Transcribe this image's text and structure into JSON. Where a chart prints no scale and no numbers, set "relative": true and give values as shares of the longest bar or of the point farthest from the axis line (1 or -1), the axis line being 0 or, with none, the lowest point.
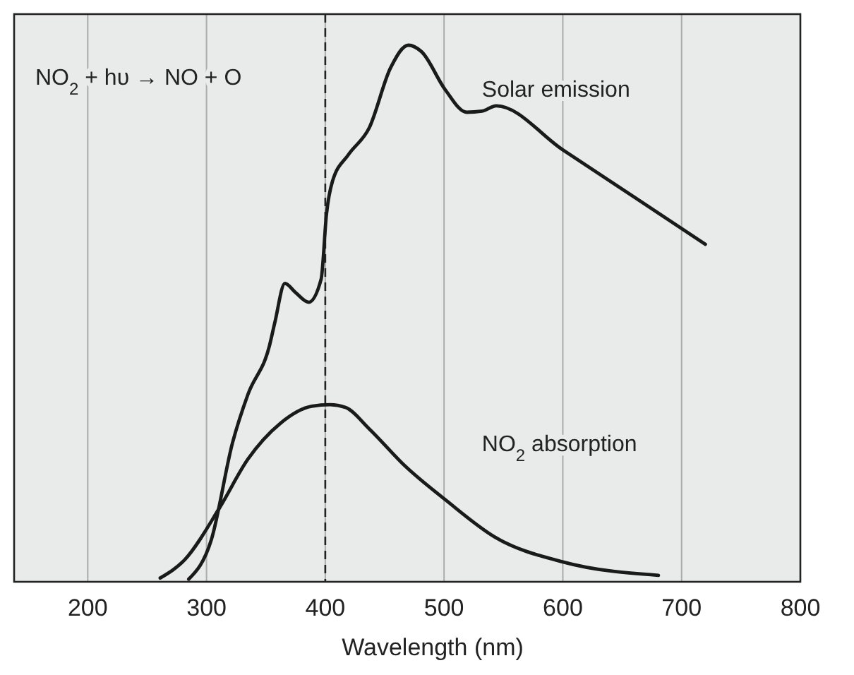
{
  "chart_data": {
    "type": "line",
    "relative": true,
    "xlabel": "Wavelength (nm)",
    "xlim": [
      138,
      800
    ],
    "xticks": [
      200,
      300,
      400,
      500,
      600,
      700,
      800
    ],
    "grid": "x",
    "legend": false,
    "annotations": [
      "NO$_{2}$ + hυ → NO + O"
    ],
    "ref_lines": [
      {
        "axis": "x",
        "value": 400,
        "line_style": "dashed",
        "color": "#222222"
      }
    ],
    "series": [
      {
        "name": "Solar emission",
        "color": "#1a1a1a",
        "x": [
          285,
          304,
          322,
          335,
          353,
          357.5,
          366,
          375,
          386,
          396.5,
          401,
          406,
          419.5,
          437,
          455,
          470,
          481,
          501,
          519,
          532,
          544,
          600,
          660,
          720
        ],
        "values": [
          0.005,
          0.078,
          0.26,
          0.35,
          0.44,
          0.483,
          0.556,
          0.539,
          0.521,
          0.564,
          0.685,
          0.746,
          0.796,
          0.846,
          0.958,
          1.0,
          0.988,
          0.917,
          0.875,
          0.877,
          0.887,
          0.805,
          0.717,
          0.629
        ]
      },
      {
        "name": "NO$_{2}$ absorption",
        "color": "#1a1a1a",
        "x": [
          261,
          282,
          311,
          335,
          362,
          388.5,
          404,
          417,
          437,
          468,
          501,
          543,
          600,
          680.5
        ],
        "values": [
          0.007,
          0.042,
          0.138,
          0.229,
          0.295,
          0.327,
          0.33,
          0.325,
          0.285,
          0.214,
          0.153,
          0.083,
          0.037,
          0.012
        ]
      }
    ]
  }
}
